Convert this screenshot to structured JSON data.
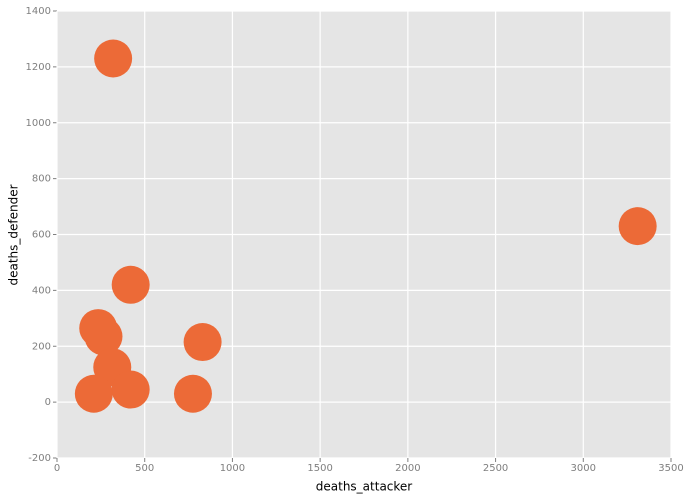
{
  "chart_data": {
    "type": "scatter",
    "x_label": "deaths_attacker",
    "y_label": "deaths_defender",
    "series": [
      {
        "color": "#ec6a37",
        "x": [
          320,
          3310,
          420,
          235,
          265,
          315,
          830,
          420,
          210,
          775
        ],
        "values": [
          1230,
          630,
          420,
          265,
          235,
          125,
          215,
          45,
          30,
          30
        ]
      }
    ],
    "xlim": [
      0,
      3500
    ],
    "xticks": [
      0,
      500,
      1000,
      1500,
      2000,
      2500,
      3000,
      3500
    ],
    "ylim": [
      -200,
      1400
    ],
    "yticks": [
      -200,
      0,
      200,
      400,
      600,
      800,
      1000,
      1200,
      1400
    ],
    "grid": true
  }
}
